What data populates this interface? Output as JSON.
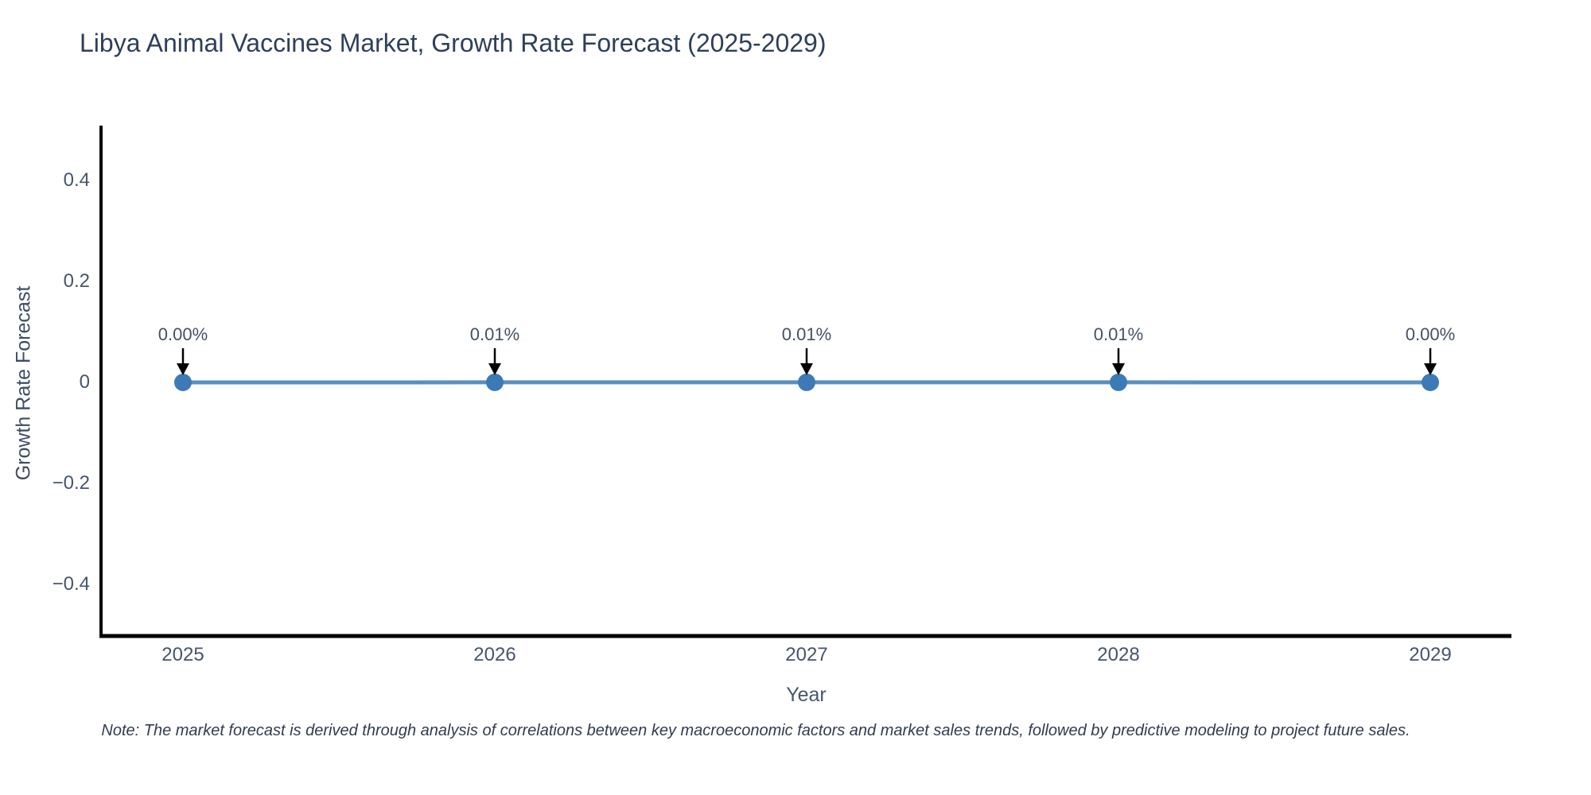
{
  "title": "Libya Animal Vaccines Market, Growth Rate Forecast (2025-2029)",
  "note": "Note: The market forecast is derived through analysis of correlations between key macroeconomic factors and market sales trends, followed by predictive modeling to project future sales.",
  "chart_data": {
    "type": "line",
    "title": "Libya Animal Vaccines Market, Growth Rate Forecast (2025-2029)",
    "xlabel": "Year",
    "ylabel": "Growth Rate Forecast",
    "x": [
      2025,
      2026,
      2027,
      2028,
      2029
    ],
    "xtick_labels": [
      "2025",
      "2026",
      "2027",
      "2028",
      "2029"
    ],
    "series": [
      {
        "name": "Growth Rate Forecast",
        "values_percent": [
          0.0,
          0.01,
          0.01,
          0.01,
          0.0
        ]
      }
    ],
    "point_labels": [
      "0.00%",
      "0.01%",
      "0.01%",
      "0.01%",
      "0.00%"
    ],
    "ylim": [
      -0.5,
      0.5
    ],
    "yticks": [
      0.4,
      0.2,
      0,
      -0.2,
      -0.4
    ],
    "ytick_labels": [
      "0.4",
      "0.2",
      "0",
      "−0.2",
      "−0.4"
    ],
    "grid": false,
    "legend": false,
    "annotations": "arrow-down-to-each-point",
    "colors": {
      "line": "#5b8fc4",
      "marker": "#3c7ab6",
      "arrow": "#000000",
      "axis": "#000000",
      "title_text": "#2e3f5c",
      "tick_text": "#47556a"
    }
  }
}
